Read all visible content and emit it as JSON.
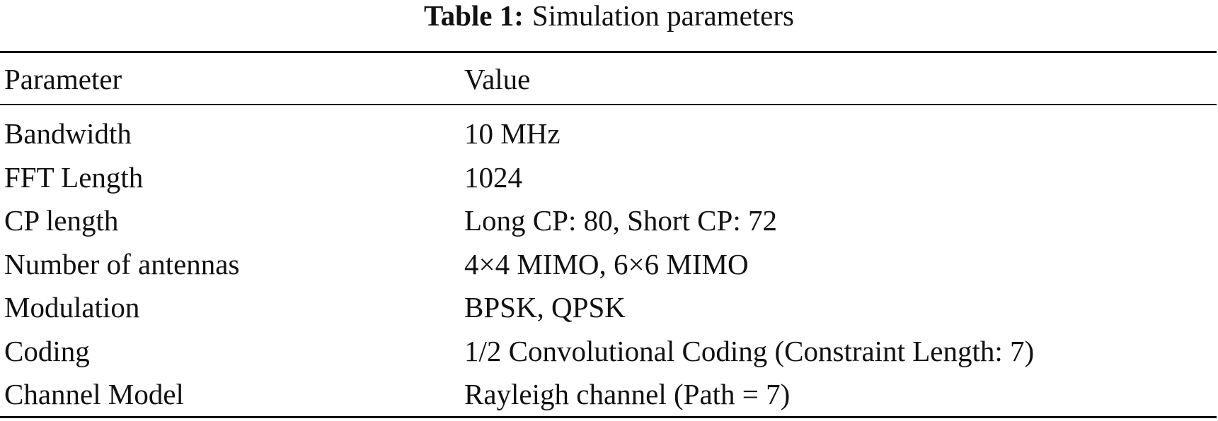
{
  "caption": {
    "label": "Table 1:",
    "text": "Simulation parameters"
  },
  "table": {
    "header": [
      "Parameter",
      "Value"
    ],
    "rows": [
      [
        "Bandwidth",
        "10 MHz"
      ],
      [
        "FFT Length",
        "1024"
      ],
      [
        "CP length",
        "Long CP: 80, Short CP: 72"
      ],
      [
        "Number of antennas",
        "4×4 MIMO, 6×6 MIMO"
      ],
      [
        "Modulation",
        "BPSK, QPSK"
      ],
      [
        "Coding",
        "1/2 Convolutional Coding (Constraint Length: 7)"
      ],
      [
        "Channel Model",
        "Rayleigh channel (Path = 7)"
      ]
    ]
  }
}
